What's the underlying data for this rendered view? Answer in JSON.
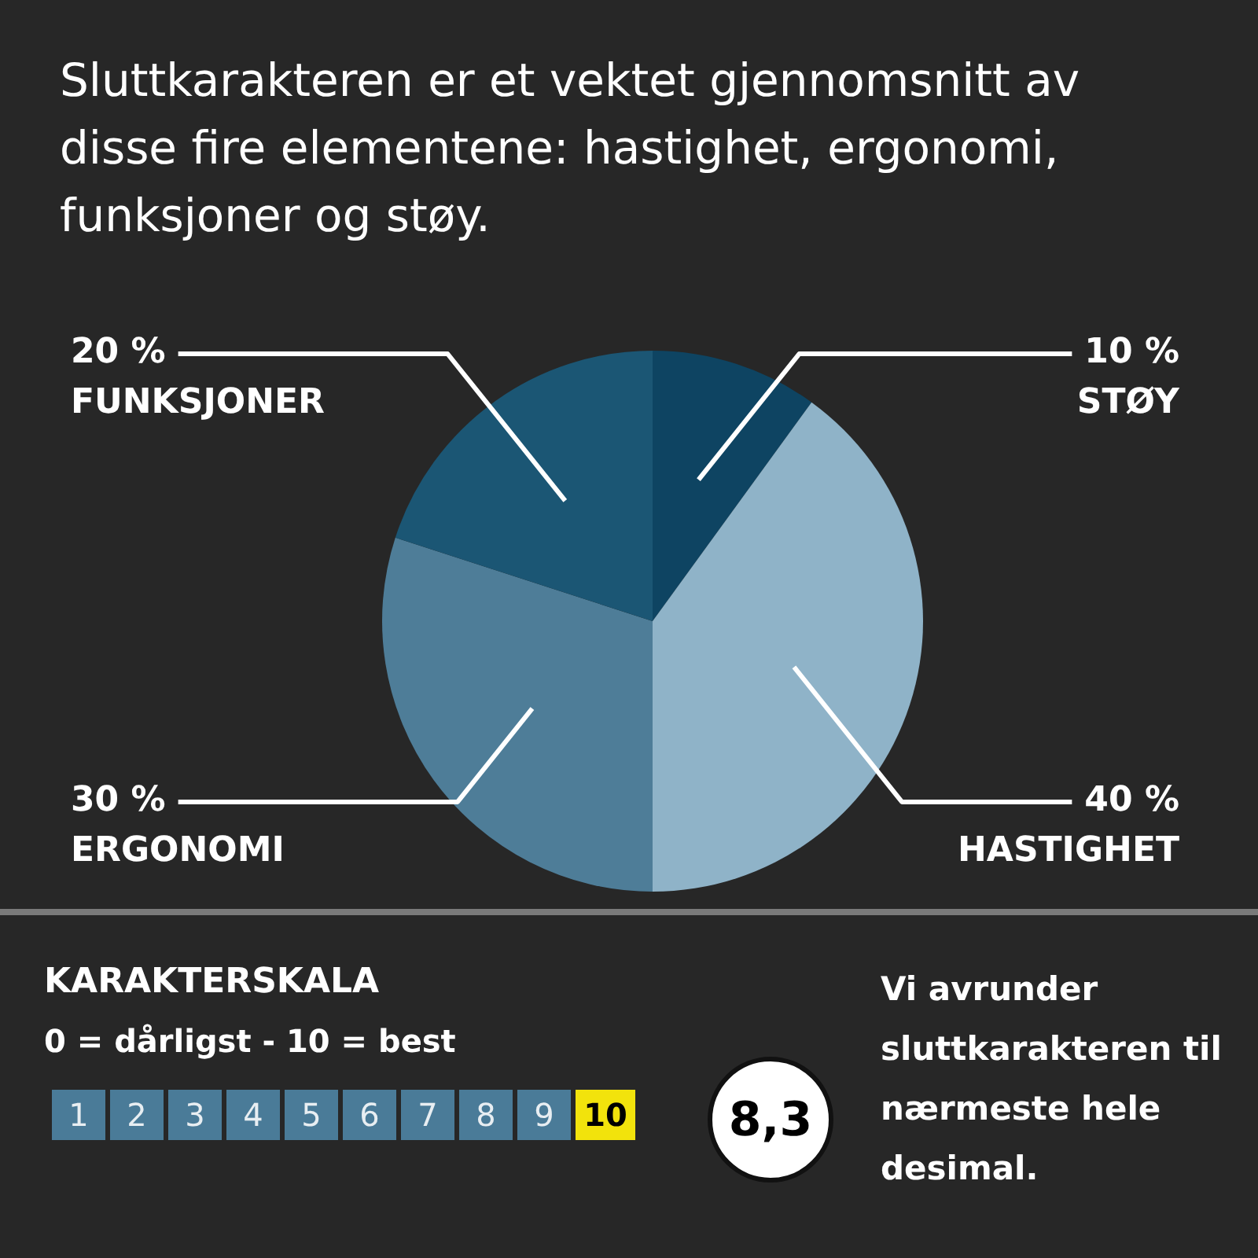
{
  "chart_data": {
    "type": "pie",
    "title": "Sluttkarakteren er et vektet gjennomsnitt av disse fire elementene: hastighet, ergonomi, funksjoner og støy.",
    "categories": [
      "STØY",
      "HASTIGHET",
      "ERGONOMI",
      "FUNKSJONER"
    ],
    "values": [
      10,
      40,
      30,
      20
    ],
    "colors": [
      "#0e4462",
      "#8fb3c8",
      "#4e7d98",
      "#1b5674"
    ],
    "value_labels": [
      "10 %",
      "40 %",
      "30 %",
      "20 %"
    ],
    "legend": false,
    "annotations": [
      "KARAKTERSKALA",
      "0 = dårligst - 10 = best",
      "1",
      "2",
      "3",
      "4",
      "5",
      "6",
      "7",
      "8",
      "9",
      "10",
      "8,3",
      "Vi avrunder sluttkarakteren til nærmeste hele desimal."
    ]
  }
}
